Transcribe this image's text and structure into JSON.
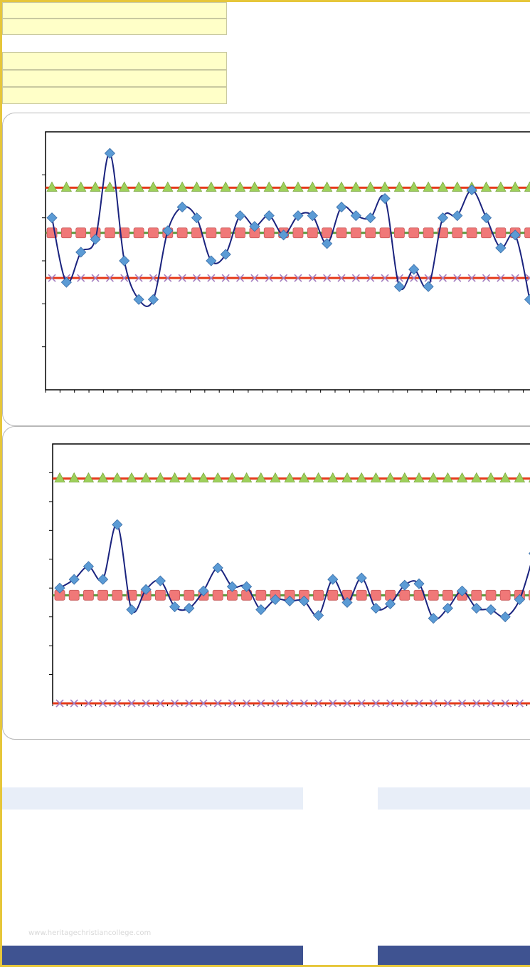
{
  "watermark_text": "www.heritagechristiancollege.com",
  "colors": {
    "frame": "#e6c63a",
    "input_fill": "#ffffc8",
    "series_line": "#1a237e",
    "series_marker": "#5b9bd5",
    "limit_line": "#e53a1a",
    "center_line": "#5a9a3a",
    "ucl_marker": "#9ed05a",
    "cl_marker": "#f07878",
    "lcl_marker": "#a57fc0",
    "band_light": "#e8eef8",
    "band_dark": "#3f5391"
  },
  "chart_data": [
    {
      "type": "line",
      "title": "",
      "xlabel": "",
      "ylabel": "",
      "ylim": [
        0,
        6
      ],
      "x_count": 34,
      "grid": false,
      "series": [
        {
          "role": "data",
          "marker": "diamond",
          "values": [
            4.0,
            2.5,
            3.2,
            3.5,
            5.5,
            3.0,
            2.1,
            2.1,
            3.7,
            4.25,
            4.0,
            3.0,
            3.15,
            4.05,
            3.8,
            4.05,
            3.6,
            4.05,
            4.05,
            3.4,
            4.25,
            4.05,
            4.0,
            4.45,
            2.4,
            2.8,
            2.4,
            4.0,
            4.05,
            4.65,
            4.0,
            3.3,
            3.6,
            2.1
          ]
        },
        {
          "role": "ucl",
          "marker": "triangle",
          "values_const": 4.7
        },
        {
          "role": "center",
          "marker": "square",
          "values_const": 3.65
        },
        {
          "role": "lcl",
          "marker": "x",
          "values_const": 2.6
        }
      ]
    },
    {
      "type": "line",
      "title": "",
      "xlabel": "",
      "ylabel": "",
      "ylim": [
        0,
        9
      ],
      "x_count": 34,
      "grid": false,
      "series": [
        {
          "role": "data",
          "marker": "diamond",
          "values": [
            4.0,
            4.3,
            4.75,
            4.3,
            6.2,
            3.25,
            3.95,
            4.25,
            3.35,
            3.3,
            3.9,
            4.7,
            4.05,
            4.05,
            3.25,
            3.6,
            3.55,
            3.55,
            3.05,
            4.3,
            3.5,
            4.35,
            3.3,
            3.45,
            4.1,
            4.15,
            2.95,
            3.3,
            3.9,
            3.3,
            3.25,
            3.0,
            3.6,
            5.2
          ]
        },
        {
          "role": "ucl",
          "marker": "triangle",
          "values_const": 7.8
        },
        {
          "role": "center",
          "marker": "square",
          "values_const": 3.75
        },
        {
          "role": "lcl",
          "marker": "x",
          "values_const": 0.0
        }
      ]
    }
  ]
}
